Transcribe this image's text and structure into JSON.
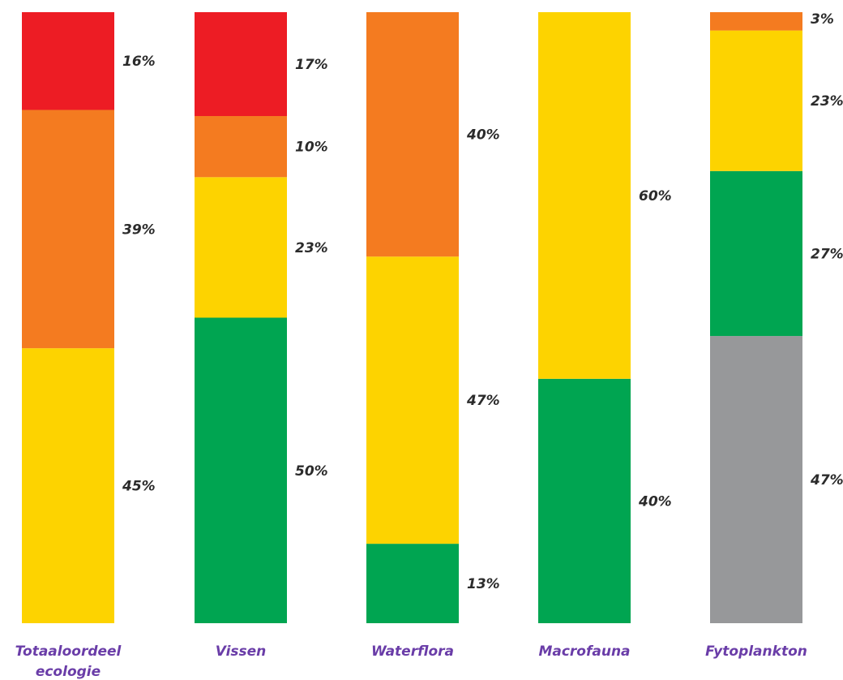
{
  "chart_data": {
    "type": "bar",
    "stacked": true,
    "categories": [
      [
        "Totaaloordeel",
        "ecologie"
      ],
      [
        "Vissen"
      ],
      [
        "Waterflora"
      ],
      [
        "Macrofauna"
      ],
      [
        "Fytoplankton"
      ]
    ],
    "bars": [
      {
        "segments": [
          {
            "value": 45,
            "label": "45%",
            "color": "#FDD300"
          },
          {
            "value": 39,
            "label": "39%",
            "color": "#F47B20"
          },
          {
            "value": 16,
            "label": "16%",
            "color": "#ED1C24"
          }
        ]
      },
      {
        "segments": [
          {
            "value": 50,
            "label": "50%",
            "color": "#00A551"
          },
          {
            "value": 23,
            "label": "23%",
            "color": "#FDD300"
          },
          {
            "value": 10,
            "label": "10%",
            "color": "#F47B20"
          },
          {
            "value": 17,
            "label": "17%",
            "color": "#ED1C24"
          }
        ]
      },
      {
        "segments": [
          {
            "value": 13,
            "label": "13%",
            "color": "#00A551"
          },
          {
            "value": 47,
            "label": "47%",
            "color": "#FDD300"
          },
          {
            "value": 40,
            "label": "40%",
            "color": "#F47B20"
          }
        ]
      },
      {
        "segments": [
          {
            "value": 40,
            "label": "40%",
            "color": "#00A551"
          },
          {
            "value": 60,
            "label": "60%",
            "color": "#FDD300"
          }
        ]
      },
      {
        "segments": [
          {
            "value": 47,
            "label": "47%",
            "color": "#97989A"
          },
          {
            "value": 27,
            "label": "27%",
            "color": "#00A551"
          },
          {
            "value": 23,
            "label": "23%",
            "color": "#FDD300"
          },
          {
            "value": 3,
            "label": "3%",
            "color": "#F47B20"
          }
        ]
      }
    ],
    "ylim": [
      0,
      100
    ],
    "grid": false,
    "legend": "none",
    "category_label_color": "#6A3DA8",
    "value_label_color": "#2B2B2B"
  }
}
